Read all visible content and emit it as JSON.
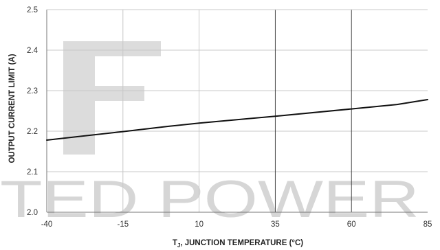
{
  "chart_data": {
    "type": "line",
    "title": "",
    "xlabel_prefix": "T",
    "xlabel_sub": "J",
    "xlabel_rest": ", JUNCTION TEMPERATURE (°C)",
    "ylabel": "OUTPUT  CURRENT LIMIT (A)",
    "xlim": [
      -40,
      85
    ],
    "ylim": [
      2.0,
      2.5
    ],
    "x_ticks": [
      -40,
      -15,
      10,
      35,
      60,
      85
    ],
    "x_tick_labels": [
      "-40",
      "-15",
      "10",
      "35",
      "60",
      "85"
    ],
    "y_ticks": [
      2.0,
      2.1,
      2.2,
      2.3,
      2.4,
      2.5
    ],
    "y_tick_labels": [
      "2.0",
      "2.1",
      "2.2",
      "2.3",
      "2.4",
      "2.5"
    ],
    "grid": true,
    "series": [
      {
        "x": [
          -40,
          -15,
          0,
          10,
          35,
          60,
          75,
          85
        ],
        "y": [
          2.178,
          2.199,
          2.212,
          2.22,
          2.237,
          2.255,
          2.266,
          2.278
        ]
      }
    ],
    "colors": {
      "line": "#111111",
      "grid": "#c8c8c8",
      "grid_dark": "#333333"
    }
  },
  "watermark": {
    "letter": "F",
    "text": "TED POWER"
  }
}
